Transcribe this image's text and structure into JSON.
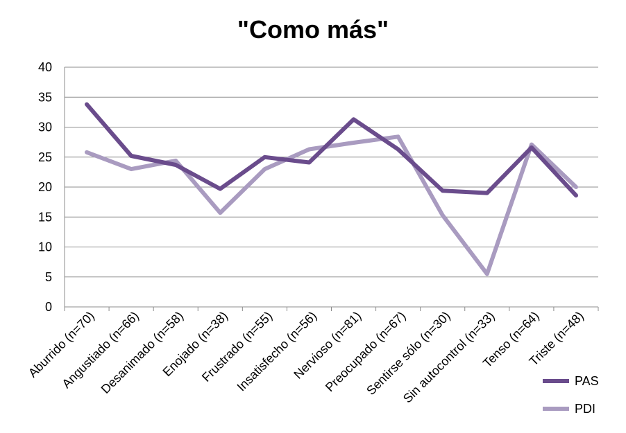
{
  "chart_data": {
    "type": "line",
    "title": "\"Como más\"",
    "xlabel": "",
    "ylabel": "",
    "ylim": [
      0,
      40
    ],
    "yticks": [
      "0",
      "5",
      "10",
      "15",
      "20",
      "25",
      "30",
      "35",
      "40"
    ],
    "grid": "horizontal",
    "legend_position": "bottom-right",
    "categories": [
      "Aburrido (n=70)",
      "Angustiado (n=66)",
      "Desanimado (n=58)",
      "Enojado (n=38)",
      "Frustrado (n=55)",
      "Insatisfecho (n=56)",
      "Nervioso (n=81)",
      "Preocupado (n=67)",
      "Sentirse sólo (n=30)",
      "Sin autocontrol (n=33)",
      "Tenso (n=64)",
      "Triste (n=48)"
    ],
    "series": [
      {
        "name": "PAS",
        "color": "#6a4c8c",
        "values": [
          33.8,
          25.2,
          23.7,
          19.7,
          25.0,
          24.1,
          31.3,
          26.3,
          19.4,
          19.0,
          26.6,
          18.6
        ]
      },
      {
        "name": "PDI",
        "color": "#a99bc0",
        "values": [
          25.8,
          23.0,
          24.4,
          15.7,
          23.0,
          26.3,
          27.4,
          28.4,
          15.3,
          5.5,
          27.1,
          20.0
        ]
      }
    ]
  }
}
